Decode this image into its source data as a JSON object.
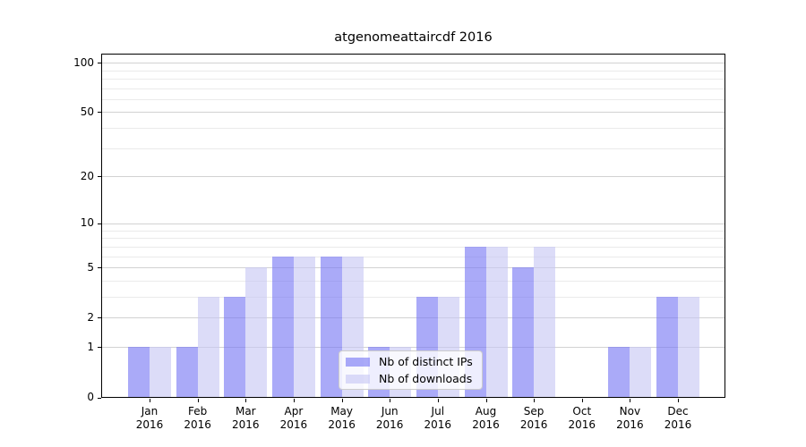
{
  "chart_data": {
    "type": "bar",
    "title": "atgenomeattaircdf 2016",
    "categories": [
      "Jan",
      "Feb",
      "Mar",
      "Apr",
      "May",
      "Jun",
      "Jul",
      "Aug",
      "Sep",
      "Oct",
      "Nov",
      "Dec"
    ],
    "year_label": "2016",
    "series": [
      {
        "key": "ips",
        "name": "Nb of distinct IPs",
        "values": [
          1,
          1,
          3,
          6,
          6,
          1,
          3,
          7,
          5,
          0,
          1,
          3
        ]
      },
      {
        "key": "downloads",
        "name": "Nb of downloads",
        "values": [
          1,
          3,
          5,
          6,
          6,
          1,
          3,
          7,
          7,
          0,
          1,
          3
        ]
      }
    ],
    "y_scale": "log1p",
    "ylim": [
      0,
      100
    ],
    "y_ticks": [
      0,
      1,
      2,
      5,
      10,
      20,
      50,
      100
    ],
    "y_minor_gridlines": [
      3,
      4,
      6,
      7,
      8,
      9,
      30,
      40,
      60,
      70,
      80,
      90
    ],
    "grid": true,
    "legend_position": "bottom-center",
    "colors": {
      "bar_ips": "rgba(118,118,243,0.62)",
      "bar_downloads": "rgba(199,199,243,0.62)",
      "grid_major": "#d2d2d2",
      "grid_minor": "#eaeaea",
      "axis": "#000000",
      "legend_border": "#cccccc"
    }
  }
}
